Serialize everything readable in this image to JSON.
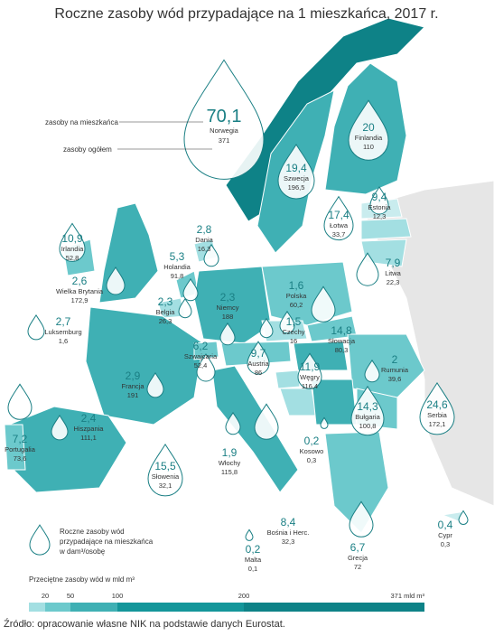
{
  "title": "Roczne zasoby wód przypadające na 1 mieszkańca, 2017 r.",
  "countries": [
    {
      "name": "Norwegia",
      "per_capita": "70,1",
      "total": "371"
    },
    {
      "name": "Finlandia",
      "per_capita": "20",
      "total": "110"
    },
    {
      "name": "Szwecja",
      "per_capita": "19,4",
      "total": "196,5"
    },
    {
      "name": "Estonia",
      "per_capita": "9,4",
      "total": "12,3"
    },
    {
      "name": "Łotwa",
      "per_capita": "17,4",
      "total": "33,7"
    },
    {
      "name": "Litwa",
      "per_capita": "7,9",
      "total": "22,3"
    },
    {
      "name": "Dania",
      "per_capita": "2,8",
      "total": "16,3"
    },
    {
      "name": "Irlandia",
      "per_capita": "10,9",
      "total": "52,8"
    },
    {
      "name": "Wielka Brytania",
      "per_capita": "2,6",
      "total": "172,9"
    },
    {
      "name": "Holandia",
      "per_capita": "5,3",
      "total": "91,8"
    },
    {
      "name": "Belgia",
      "per_capita": "2,3",
      "total": "26,3"
    },
    {
      "name": "Niemcy",
      "per_capita": "2,3",
      "total": "188"
    },
    {
      "name": "Polska",
      "per_capita": "1,6",
      "total": "60,2"
    },
    {
      "name": "Luksemburg",
      "per_capita": "2,7",
      "total": "1,6"
    },
    {
      "name": "Czechy",
      "per_capita": "1,5",
      "total": "16"
    },
    {
      "name": "Słowacja",
      "per_capita": "14,8",
      "total": "80,3"
    },
    {
      "name": "Szwajcaria",
      "per_capita": "6,2",
      "total": "52,4"
    },
    {
      "name": "Austria",
      "per_capita": "9,7",
      "total": "86"
    },
    {
      "name": "Węgry",
      "per_capita": "11,9",
      "total": "116,4"
    },
    {
      "name": "Rumunia",
      "per_capita": "2",
      "total": "39,6"
    },
    {
      "name": "Francja",
      "per_capita": "2,9",
      "total": "191"
    },
    {
      "name": "Hiszpania",
      "per_capita": "2,4",
      "total": "111,1"
    },
    {
      "name": "Portugalia",
      "per_capita": "7,2",
      "total": "73,6"
    },
    {
      "name": "Serbia",
      "per_capita": "24,6",
      "total": "172,1"
    },
    {
      "name": "Bułgaria",
      "per_capita": "14,3",
      "total": "100,8"
    },
    {
      "name": "Kosowo",
      "per_capita": "0,2",
      "total": "0,3"
    },
    {
      "name": "Słowenia",
      "per_capita": "15,5",
      "total": "32,1"
    },
    {
      "name": "Włochy",
      "per_capita": "1,9",
      "total": "115,8"
    },
    {
      "name": "Bośnia i Herc.",
      "per_capita": "8,4",
      "total": "32,3"
    },
    {
      "name": "Malta",
      "per_capita": "0,2",
      "total": "0,1"
    },
    {
      "name": "Grecja",
      "per_capita": "6,7",
      "total": "72"
    },
    {
      "name": "Cypr",
      "per_capita": "0,4",
      "total": "0,3"
    }
  ],
  "key": {
    "per_capita": "zasoby na mieszkańca",
    "total": "zasoby ogółem"
  },
  "legend": {
    "lines": [
      "Roczne zasoby wód",
      "przypadające na mieszkańca",
      "w dam³/osobę"
    ]
  },
  "scale": {
    "title": "Przeciętne zasoby wód w mld m³",
    "labels": [
      "20",
      "50",
      "100",
      "200",
      "371 mld m³"
    ]
  },
  "source": "Źródło: opracowanie własne NIK na podstawie danych Eurostat."
}
